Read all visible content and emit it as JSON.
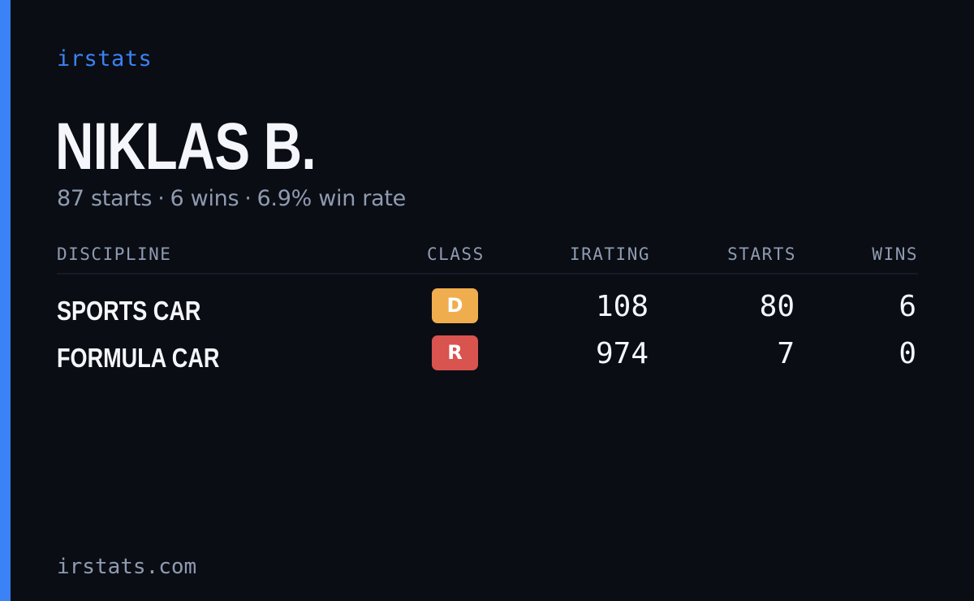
{
  "colors": {
    "background": "#0a0d14",
    "accent": "#3b82f6",
    "muted_text": "#8f9bb0",
    "class_d": "#f0ad4e",
    "class_r": "#d9534f"
  },
  "brand": "irstats",
  "player": {
    "name": "NIKLAS B."
  },
  "summary": {
    "starts": "87 starts",
    "wins": "6 wins",
    "win_rate": "6.9% win rate",
    "separator": "·"
  },
  "table": {
    "headers": {
      "discipline": "DISCIPLINE",
      "class": "CLASS",
      "irating": "IRATING",
      "starts": "STARTS",
      "wins": "WINS"
    },
    "rows": [
      {
        "discipline": "SPORTS CAR",
        "class": "D",
        "class_color": "#f0ad4e",
        "irating": "108",
        "starts": "80",
        "wins": "6"
      },
      {
        "discipline": "FORMULA CAR",
        "class": "R",
        "class_color": "#d9534f",
        "irating": "974",
        "starts": "7",
        "wins": "0"
      }
    ]
  },
  "footer": "irstats.com"
}
